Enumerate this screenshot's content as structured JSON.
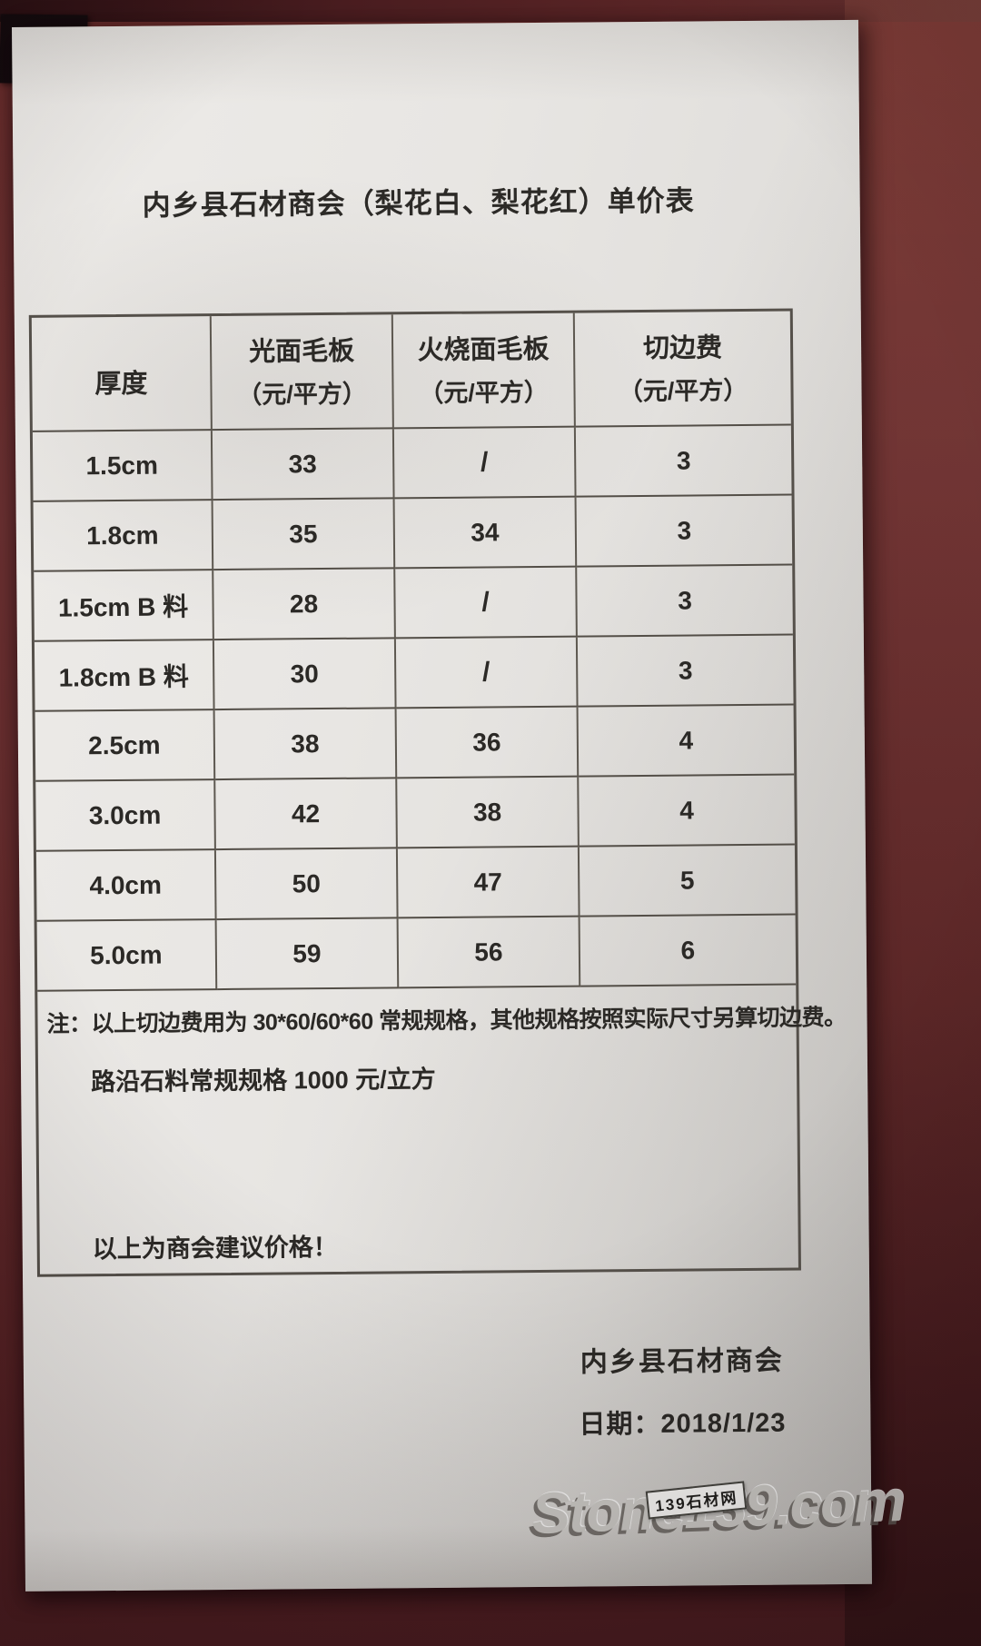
{
  "photo": {
    "watermark_text": "Stone139.com",
    "watermark_badge": "139石材网",
    "desk_color": "#602829",
    "paper_color": "#e8e6e3"
  },
  "document": {
    "title": "内乡县石材商会（梨花白、梨花红）单价表",
    "table": {
      "headers": [
        {
          "line1": "厚度",
          "line2": ""
        },
        {
          "line1": "光面毛板",
          "line2": "（元/平方）"
        },
        {
          "line1": "火烧面毛板",
          "line2": "（元/平方）"
        },
        {
          "line1": "切边费",
          "line2": "（元/平方）"
        }
      ],
      "rows": [
        {
          "thickness": "1.5cm",
          "polished": "33",
          "flamed": "/",
          "cutting": "3"
        },
        {
          "thickness": "1.8cm",
          "polished": "35",
          "flamed": "34",
          "cutting": "3"
        },
        {
          "thickness": "1.5cm B 料",
          "polished": "28",
          "flamed": "/",
          "cutting": "3"
        },
        {
          "thickness": "1.8cm B 料",
          "polished": "30",
          "flamed": "/",
          "cutting": "3"
        },
        {
          "thickness": "2.5cm",
          "polished": "38",
          "flamed": "36",
          "cutting": "4"
        },
        {
          "thickness": "3.0cm",
          "polished": "42",
          "flamed": "38",
          "cutting": "4"
        },
        {
          "thickness": "4.0cm",
          "polished": "50",
          "flamed": "47",
          "cutting": "5"
        },
        {
          "thickness": "5.0cm",
          "polished": "59",
          "flamed": "56",
          "cutting": "6"
        }
      ]
    },
    "notes": {
      "note1": "注：以上切边费用为 30*60/60*60 常规规格，其他规格按照实际尺寸另算切边费。",
      "note2": "路沿石料常规规格 1000 元/立方",
      "note3": "以上为商会建议价格！"
    },
    "signature": "内乡县石材商会",
    "date_line": "日期：2018/1/23"
  }
}
